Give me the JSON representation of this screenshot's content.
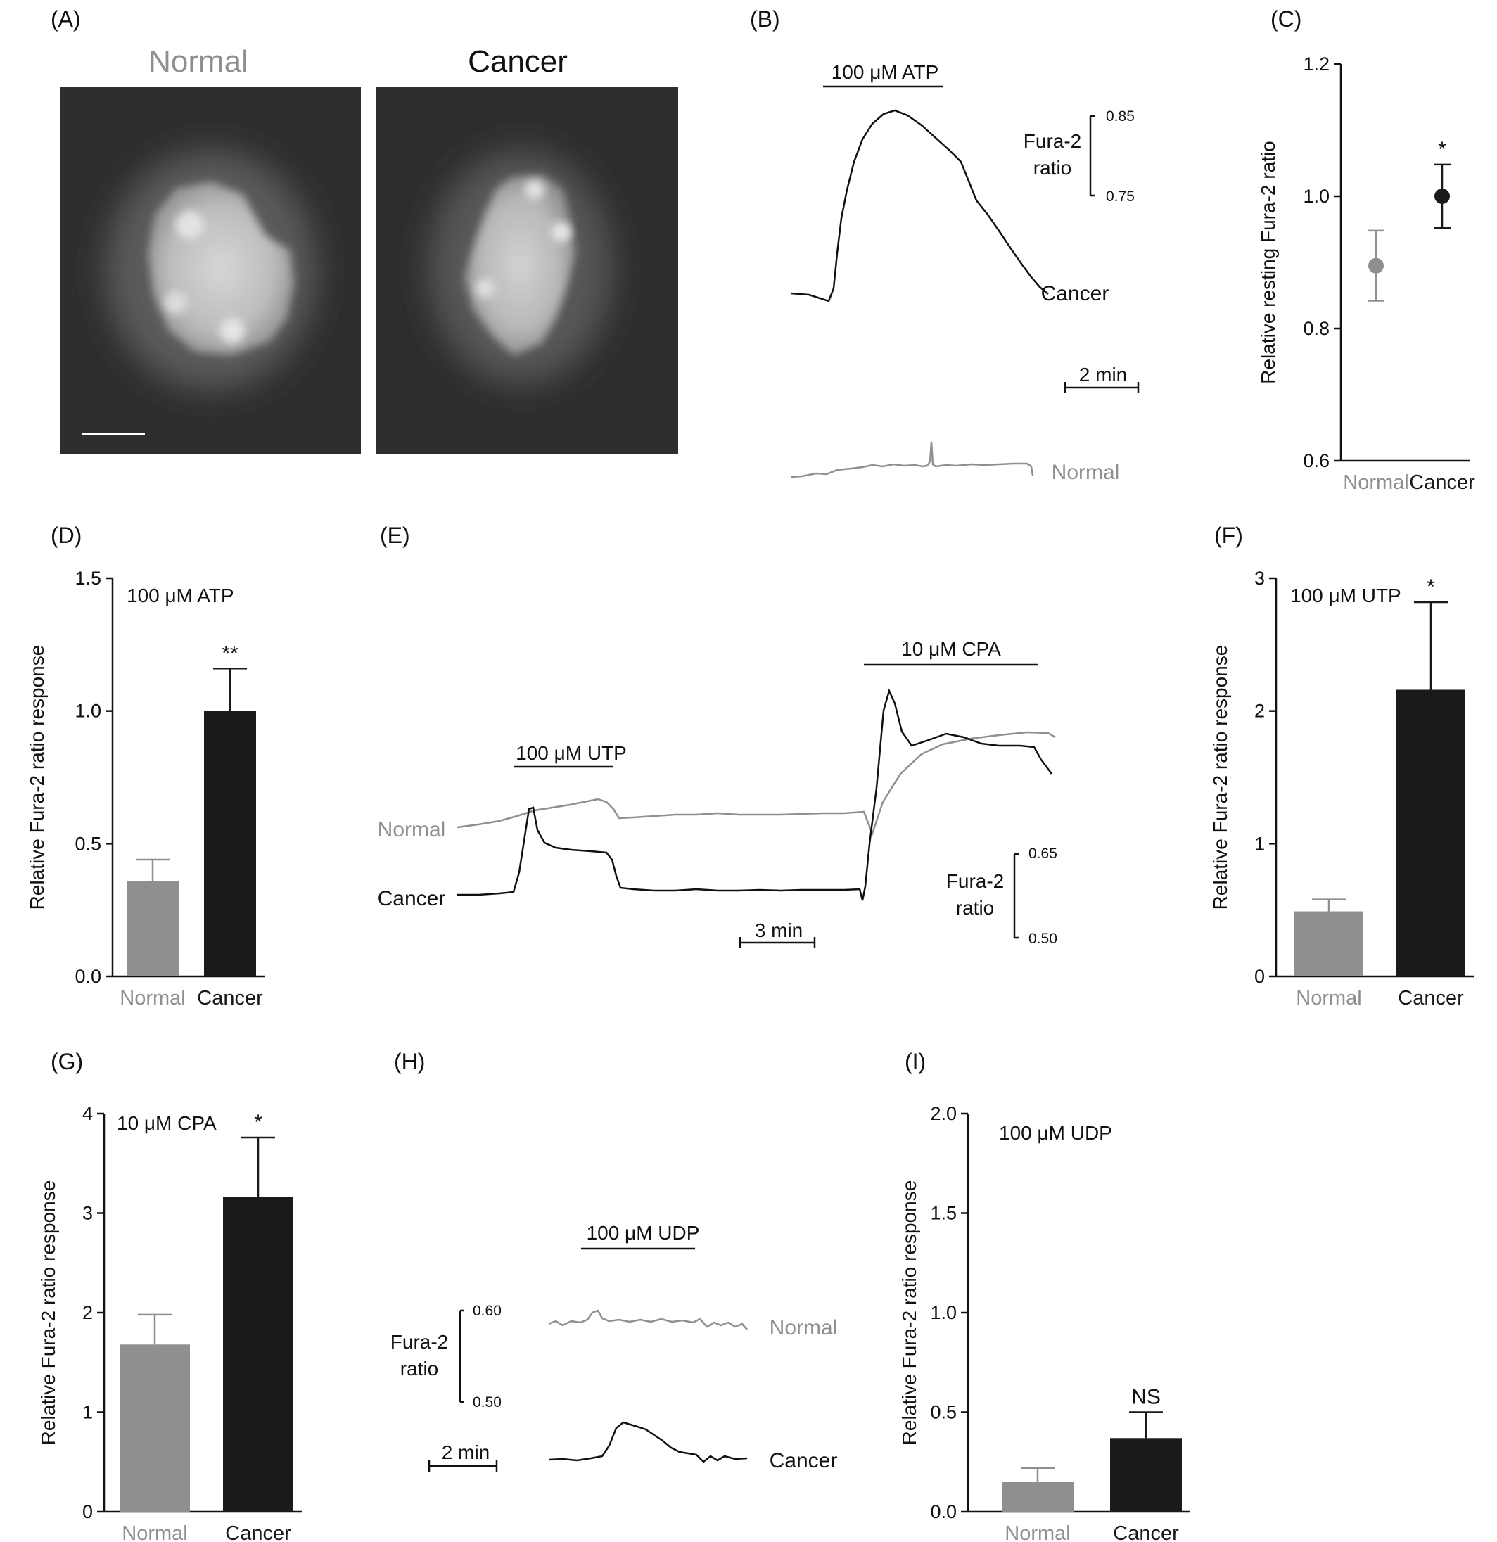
{
  "panel_labels": [
    "(A)",
    "(B)",
    "(C)",
    "(D)",
    "(E)",
    "(F)",
    "(G)",
    "(H)",
    "(I)"
  ],
  "colors": {
    "normal": "#8f8f8f",
    "cancer": "#1a1a1a",
    "axis": "#111111",
    "micrograph_bg": "#2e2e2e"
  },
  "panel_a": {
    "normal_title": "Normal",
    "cancer_title": "Cancer",
    "scale_bar": true
  },
  "panel_b": {
    "drug": "100 μM ATP",
    "ratio_label_1": "Fura-2",
    "ratio_label_2": "ratio",
    "ratio_top": "0.85",
    "ratio_bottom": "0.75",
    "time_scale": "2 min",
    "trace_cancer_label": "Cancer",
    "trace_normal_label": "Normal"
  },
  "panel_e": {
    "drug_1": "100 μM UTP",
    "drug_2": "10 μM CPA",
    "trace_normal_label": "Normal",
    "trace_cancer_label": "Cancer",
    "ratio_label_1": "Fura-2",
    "ratio_label_2": "ratio",
    "ratio_top": "0.65",
    "ratio_bottom": "0.50",
    "time_scale": "3 min"
  },
  "panel_h": {
    "drug": "100 μM UDP",
    "ratio_label_1": "Fura-2",
    "ratio_label_2": "ratio",
    "ratio_top": "0.60",
    "ratio_bottom": "0.50",
    "time_scale": "2 min",
    "trace_normal_label": "Normal",
    "trace_cancer_label": "Cancer"
  },
  "chart_data": [
    {
      "panel": "C",
      "type": "scatter",
      "categories": [
        "Normal",
        "Cancer"
      ],
      "values": [
        0.895,
        1.0
      ],
      "errors": [
        0.053,
        0.048
      ],
      "ylabel": "Relative resting Fura-2 ratio",
      "ylim": [
        0.6,
        1.2
      ],
      "yticks": [
        "0.6",
        "0.8",
        "1.0",
        "1.2"
      ],
      "annotations": [
        "",
        "*"
      ]
    },
    {
      "panel": "D",
      "type": "bar",
      "title": "100 μM ATP",
      "categories": [
        "Normal",
        "Cancer"
      ],
      "values": [
        0.36,
        1.0
      ],
      "errors": [
        0.08,
        0.16
      ],
      "ylabel": "Relative Fura-2 ratio response",
      "ylim": [
        0,
        1.5
      ],
      "yticks": [
        "0.0",
        "0.5",
        "1.0",
        "1.5"
      ],
      "annotations": [
        "",
        "**"
      ]
    },
    {
      "panel": "F",
      "type": "bar",
      "title": "100 μM UTP",
      "categories": [
        "Normal",
        "Cancer"
      ],
      "values": [
        0.49,
        2.16
      ],
      "errors": [
        0.09,
        0.66
      ],
      "ylabel": "Relative Fura-2 ratio response",
      "ylim": [
        0,
        3
      ],
      "yticks": [
        "0",
        "1",
        "2",
        "3"
      ],
      "annotations": [
        "",
        "*"
      ]
    },
    {
      "panel": "G",
      "type": "bar",
      "title": "10 μM CPA",
      "categories": [
        "Normal",
        "Cancer"
      ],
      "values": [
        1.68,
        3.16
      ],
      "errors": [
        0.3,
        0.6
      ],
      "ylabel": "Relative Fura-2 ratio response",
      "ylim": [
        0,
        4
      ],
      "yticks": [
        "0",
        "1",
        "2",
        "3",
        "4"
      ],
      "annotations": [
        "",
        "*"
      ]
    },
    {
      "panel": "I",
      "type": "bar",
      "title": "100 μM UDP",
      "categories": [
        "Normal",
        "Cancer"
      ],
      "values": [
        0.15,
        0.37
      ],
      "errors": [
        0.07,
        0.13
      ],
      "ylabel": "Relative Fura-2 ratio response",
      "ylim": [
        0,
        2.0
      ],
      "yticks": [
        "0.0",
        "0.5",
        "1.0",
        "1.5",
        "2.0"
      ],
      "annotations": [
        "",
        "NS"
      ]
    }
  ]
}
